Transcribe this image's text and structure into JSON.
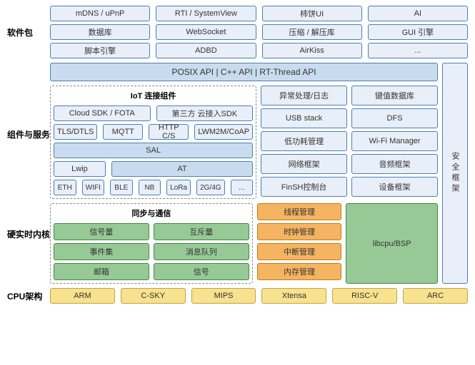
{
  "colors": {
    "blue_fill": "#e8eff8",
    "blue_border": "#4a7fb5",
    "api_fill": "#c9dcef",
    "api_border": "#4a7fb5",
    "green_fill": "#97c997",
    "green_border": "#3f8a3f",
    "orange_fill": "#f4b461",
    "orange_border": "#c87a13",
    "yellow_fill": "#f8e18f",
    "yellow_border": "#c4a733",
    "text": "#333333"
  },
  "labels": {
    "pkg": "软件包",
    "comp": "组件与服务",
    "kernel": "硬实时内核",
    "cpu": "CPU架构"
  },
  "pkg": {
    "r1": [
      "mDNS / uPnP",
      "RTI / SystemView",
      "柿饼UI",
      "AI"
    ],
    "r2": [
      "数据库",
      "WebSocket",
      "压缩 / 解压库",
      "GUI 引擎"
    ],
    "r3": [
      "脚本引擎",
      "ADBD",
      "AirKiss",
      "..."
    ]
  },
  "api": "POSIX API  |  C++ API  |  RT-Thread API",
  "iot": {
    "title": "IoT 连接组件",
    "r1": [
      "Cloud SDK / FOTA",
      "第三方 云接入SDK"
    ],
    "r2": [
      "TLS/DTLS",
      "MQTT",
      "HTTP C/S",
      "LWM2M/CoAP"
    ],
    "sal": "SAL",
    "r4": [
      "Lwip",
      "AT"
    ],
    "r5": [
      "ETH",
      "WIFI",
      "BLE",
      "NB",
      "LoRa",
      "2G/4G",
      "..."
    ]
  },
  "mid": {
    "c1": [
      "异常处理/日志",
      "USB stack",
      "低功耗管理",
      "网络框架",
      "FinSH控制台"
    ],
    "c2": [
      "键值数据库",
      "DFS",
      "Wi-Fi Manager",
      "音频框架",
      "设备框架"
    ]
  },
  "security": "安全框架",
  "sync": {
    "title": "同步与通信",
    "left": [
      "信号量",
      "事件集",
      "邮箱"
    ],
    "right": [
      "互斥量",
      "消息队列",
      "信号"
    ]
  },
  "kern": [
    "线程管理",
    "时钟管理",
    "中断管理",
    "内存管理"
  ],
  "libcpu": "libcpu/BSP",
  "cpu": [
    "ARM",
    "C-SKY",
    "MIPS",
    "Xtensa",
    "RISC-V",
    "ARC"
  ]
}
